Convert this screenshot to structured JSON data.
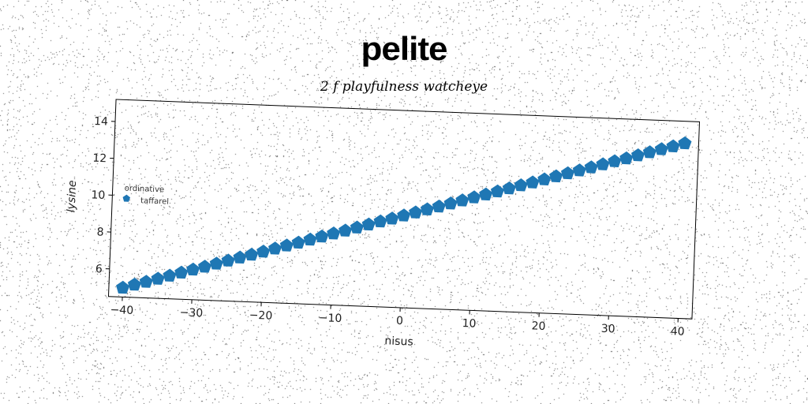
{
  "chart_data": {
    "type": "scatter",
    "title": "pelite",
    "subtitle": "2 f playfulness watcheye",
    "xlabel": "nisus",
    "ylabel": "lysine",
    "xlim": [
      -42,
      42
    ],
    "ylim": [
      4.5,
      15.2
    ],
    "xticks": [
      -40,
      -30,
      -20,
      -10,
      0,
      10,
      20,
      30,
      40
    ],
    "yticks": [
      6,
      8,
      10,
      12,
      14
    ],
    "legend": {
      "title": "ordinative",
      "placement": "center-left"
    },
    "series": [
      {
        "name": "taffarel",
        "color": "#1f77b4",
        "marker": "pentagon",
        "x": [
          -40,
          -38.33,
          -36.67,
          -35,
          -33.33,
          -31.67,
          -30,
          -28.33,
          -26.67,
          -25,
          -23.33,
          -21.67,
          -20,
          -18.33,
          -16.67,
          -15,
          -13.33,
          -11.67,
          -10,
          -8.33,
          -6.67,
          -5,
          -3.33,
          -1.67,
          0,
          1.67,
          3.33,
          5,
          6.67,
          8.33,
          10,
          11.67,
          13.33,
          15,
          16.67,
          18.33,
          20,
          21.67,
          23.33,
          25,
          26.67,
          28.33,
          30,
          31.67,
          33.33,
          35,
          36.67,
          38.33,
          40
        ],
        "y": [
          5,
          5.19,
          5.37,
          5.56,
          5.75,
          5.94,
          6.13,
          6.31,
          6.5,
          6.69,
          6.88,
          7.06,
          7.25,
          7.44,
          7.63,
          7.81,
          8,
          8.19,
          8.38,
          8.56,
          8.75,
          8.94,
          9.13,
          9.31,
          9.5,
          9.69,
          9.88,
          10.06,
          10.25,
          10.44,
          10.63,
          10.81,
          11,
          11.19,
          11.38,
          11.56,
          11.75,
          11.94,
          12.13,
          12.31,
          12.5,
          12.69,
          12.88,
          13.06,
          13.25,
          13.44,
          13.63,
          13.81,
          14
        ]
      }
    ]
  }
}
